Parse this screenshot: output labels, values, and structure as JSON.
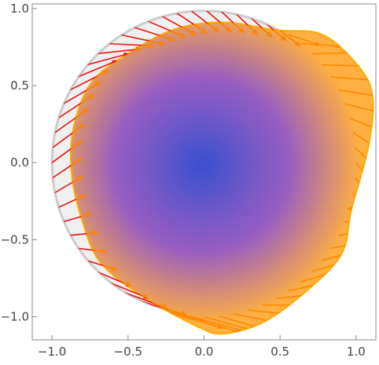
{
  "chart_data": {
    "type": "vector-field-region",
    "title": "",
    "xlabel": "",
    "ylabel": "",
    "xlim": [
      -1.13,
      1.13
    ],
    "ylim": [
      -1.15,
      1.03
    ],
    "x_ticks": [
      -1.0,
      -0.5,
      0.0,
      0.5,
      1.0
    ],
    "x_tick_labels": [
      "−1.0",
      "−0.5",
      "0.0",
      "0.5",
      "1.0"
    ],
    "y_ticks": [
      -1.0,
      -0.5,
      0.0,
      0.5,
      1.0
    ],
    "y_tick_labels": [
      "−1.0",
      "−0.5",
      "0.0",
      "0.5",
      "1.0"
    ],
    "grid": false,
    "reference_region": {
      "shape": "unit-disk",
      "radius": 1.0,
      "fill": "#f0f0f0",
      "stroke": "#cccccc"
    },
    "deformed_region": {
      "shape": "closed-curve",
      "boundary": [
        [
          0.78,
          0.83
        ],
        [
          0.47,
          0.86
        ],
        [
          0.14,
          0.91
        ],
        [
          -0.18,
          0.87
        ],
        [
          -0.48,
          0.72
        ],
        [
          -0.74,
          0.52
        ],
        [
          -0.86,
          0.22
        ],
        [
          -0.87,
          -0.08
        ],
        [
          -0.8,
          -0.38
        ],
        [
          -0.68,
          -0.65
        ],
        [
          -0.4,
          -0.87
        ],
        [
          -0.05,
          -1.06
        ],
        [
          0.12,
          -1.11
        ],
        [
          0.38,
          -1.04
        ],
        [
          0.64,
          -0.86
        ],
        [
          0.9,
          -0.6
        ],
        [
          0.97,
          -0.3
        ],
        [
          1.08,
          0.1
        ],
        [
          1.11,
          0.42
        ],
        [
          1.02,
          0.62
        ]
      ],
      "fill_center": "#3a50d0",
      "fill_mid": "#9a5ec0",
      "fill_edge": "#ffb040",
      "stroke": "#ffaa00"
    },
    "arrows": {
      "count": 64,
      "on_radius": 1.0,
      "length_scale": 0.75,
      "color_outside": "#ee1111",
      "color_inside": "#ff8800"
    }
  }
}
